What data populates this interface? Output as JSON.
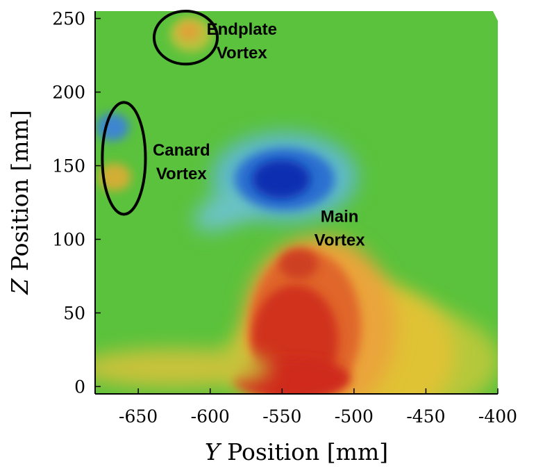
{
  "chart_data": {
    "type": "heatmap",
    "title": "",
    "xlabel_var": "Y",
    "xlabel_rest": " Position [mm]",
    "ylabel_var": "Z",
    "ylabel_rest": " Position [mm]",
    "xlim": [
      -680,
      -400
    ],
    "ylim": [
      -5,
      255
    ],
    "x_ticks": [
      "-650",
      "-600",
      "-550",
      "-500",
      "-450",
      "-400"
    ],
    "y_ticks": [
      "0",
      "50",
      "100",
      "150",
      "200",
      "250"
    ],
    "x_tick_values": [
      -650,
      -600,
      -550,
      -500,
      -450,
      -400
    ],
    "y_tick_values": [
      0,
      50,
      100,
      150,
      200,
      250
    ],
    "colormap": "jet",
    "background_color": "#5ac23c",
    "features": [
      {
        "type": "positive",
        "y": -540,
        "z": 40
      },
      {
        "type": "positive",
        "y": -535,
        "z": 75
      },
      {
        "type": "negative",
        "y": -550,
        "z": 140
      },
      {
        "type": "negative",
        "y": -665,
        "z": 175
      },
      {
        "type": "positive",
        "y": -665,
        "z": 135
      },
      {
        "type": "positive",
        "y": -617,
        "z": 237
      }
    ],
    "annotations": [
      {
        "line1": "Endplate",
        "line2": "Vortex",
        "y": -578,
        "z": 237
      },
      {
        "line1": "Canard",
        "line2": "Vortex",
        "y": -620,
        "z": 155
      },
      {
        "line1": "Main",
        "line2": "Vortex",
        "y": -510,
        "z": 110
      }
    ],
    "ellipses": [
      {
        "name": "endplate",
        "y": -617,
        "z": 237,
        "ry": 22,
        "rz": 18
      },
      {
        "name": "canard",
        "y": -660,
        "z": 155,
        "ry": 15,
        "rz": 38
      }
    ]
  }
}
